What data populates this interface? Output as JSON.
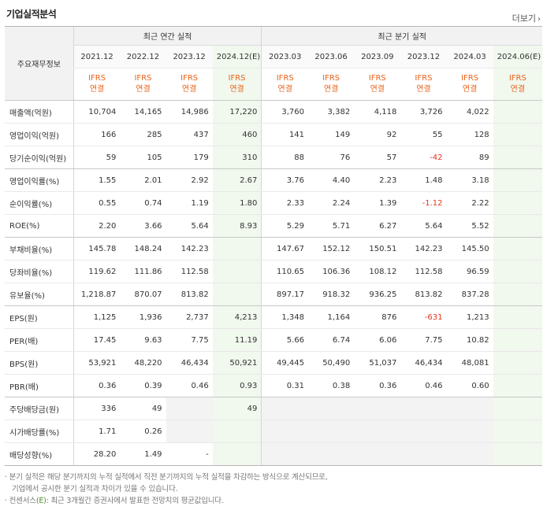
{
  "title": "기업실적분석",
  "more_label": "더보기",
  "table": {
    "corner_label": "주요재무정보",
    "annual_group": "최근 연간 실적",
    "quarter_group": "최근 분기 실적",
    "periods": [
      "2021.12",
      "2022.12",
      "2023.12",
      "2024.12(E)",
      "2023.03",
      "2023.06",
      "2023.09",
      "2023.12",
      "2024.03",
      "2024.06(E)"
    ],
    "ifrs_top": "IFRS",
    "ifrs_bottom": "연결",
    "rows": [
      {
        "label": "매출액(억원)",
        "values": [
          "10,704",
          "14,165",
          "14,986",
          "17,220",
          "3,760",
          "3,382",
          "4,118",
          "3,726",
          "4,022",
          ""
        ]
      },
      {
        "label": "영업이익(억원)",
        "values": [
          "166",
          "285",
          "437",
          "460",
          "141",
          "149",
          "92",
          "55",
          "128",
          ""
        ]
      },
      {
        "label": "당기순이익(억원)",
        "values": [
          "59",
          "105",
          "179",
          "310",
          "88",
          "76",
          "57",
          "-42",
          "89",
          ""
        ]
      },
      {
        "label": "영업이익률(%)",
        "values": [
          "1.55",
          "2.01",
          "2.92",
          "2.67",
          "3.76",
          "4.40",
          "2.23",
          "1.48",
          "3.18",
          ""
        ]
      },
      {
        "label": "순이익률(%)",
        "values": [
          "0.55",
          "0.74",
          "1.19",
          "1.80",
          "2.33",
          "2.24",
          "1.39",
          "-1.12",
          "2.22",
          ""
        ]
      },
      {
        "label": "ROE(%)",
        "values": [
          "2.20",
          "3.66",
          "5.64",
          "8.93",
          "5.29",
          "5.71",
          "6.27",
          "5.64",
          "5.52",
          ""
        ]
      },
      {
        "label": "부채비율(%)",
        "values": [
          "145.78",
          "148.24",
          "142.23",
          "",
          "147.67",
          "152.12",
          "150.51",
          "142.23",
          "145.50",
          ""
        ]
      },
      {
        "label": "당좌비율(%)",
        "values": [
          "119.62",
          "111.86",
          "112.58",
          "",
          "110.65",
          "106.36",
          "108.12",
          "112.58",
          "96.59",
          ""
        ]
      },
      {
        "label": "유보율(%)",
        "values": [
          "1,218.87",
          "870.07",
          "813.82",
          "",
          "897.17",
          "918.32",
          "936.25",
          "813.82",
          "837.28",
          ""
        ]
      },
      {
        "label": "EPS(원)",
        "values": [
          "1,125",
          "1,936",
          "2,737",
          "4,213",
          "1,348",
          "1,164",
          "876",
          "-631",
          "1,213",
          ""
        ]
      },
      {
        "label": "PER(배)",
        "values": [
          "17.45",
          "9.63",
          "7.75",
          "11.19",
          "5.66",
          "6.74",
          "6.06",
          "7.75",
          "10.82",
          ""
        ]
      },
      {
        "label": "BPS(원)",
        "values": [
          "53,921",
          "48,220",
          "46,434",
          "50,921",
          "49,445",
          "50,490",
          "51,037",
          "46,434",
          "48,081",
          ""
        ]
      },
      {
        "label": "PBR(배)",
        "values": [
          "0.36",
          "0.39",
          "0.46",
          "0.93",
          "0.31",
          "0.38",
          "0.36",
          "0.46",
          "0.60",
          ""
        ]
      },
      {
        "label": "주당배당금(원)",
        "values": [
          "336",
          "49",
          "",
          "49",
          "",
          "",
          "",
          "",
          "",
          ""
        ]
      },
      {
        "label": "시가배당률(%)",
        "values": [
          "1.71",
          "0.26",
          "",
          "",
          "",
          "",
          "",
          "",
          "",
          ""
        ]
      },
      {
        "label": "배당성향(%)",
        "values": [
          "28.20",
          "1.49",
          "-",
          "",
          "",
          "",
          "",
          "",
          "",
          ""
        ]
      }
    ]
  },
  "notes": {
    "line1": "· 분기 실적은 해당 분기까지의 누적 실적에서 직전 분기까지의 누적 실적을 차감하는 방식으로 계산되므로,",
    "line2": "기업에서 공시한 분기 실적과 차이가 있을 수 있습니다.",
    "line3_prefix": "· 컨센서스",
    "line3_e": "(E)",
    "line3_suffix": ": 최근 3개월간 증권사에서 발표한 전망치의 평균값입니다."
  },
  "colors": {
    "ifrs": "#e8631b",
    "negative": "#e8331e",
    "estimate_bg": "#f1f8ee"
  }
}
